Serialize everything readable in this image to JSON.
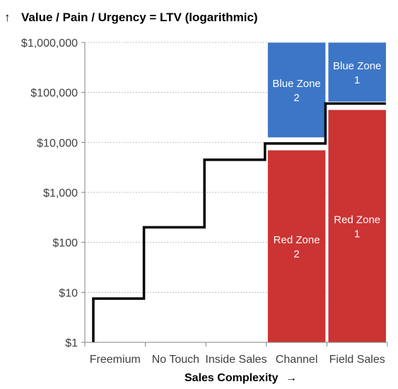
{
  "chart_data": {
    "type": "bar",
    "title": "Value / Pain / Urgency = LTV (logarithmic)",
    "title_arrow": "↑",
    "xlabel": "Sales Complexity",
    "xlabel_arrow": "→",
    "ylabel": "",
    "yscale": "log",
    "ylim": [
      1,
      1000000
    ],
    "grid": true,
    "yticks": [
      {
        "value": 1,
        "label": "$1"
      },
      {
        "value": 10,
        "label": "$10"
      },
      {
        "value": 100,
        "label": "$100"
      },
      {
        "value": 1000,
        "label": "$1,000"
      },
      {
        "value": 10000,
        "label": "$10,000"
      },
      {
        "value": 100000,
        "label": "$100,000"
      },
      {
        "value": 1000000,
        "label": "$1,000,000"
      }
    ],
    "categories": [
      "Freemium",
      "No Touch",
      "Inside Sales",
      "Channel",
      "Field Sales"
    ],
    "zones": [
      {
        "label": "Blue Zone 2",
        "category": "Channel",
        "low": 12500,
        "high": 1000000,
        "color": "#3d76c6"
      },
      {
        "label": "Red Zone 2",
        "category": "Channel",
        "low": 1,
        "high": 7000,
        "color": "#cc3333"
      },
      {
        "label": "Blue Zone 1",
        "category": "Field Sales",
        "low": 65000,
        "high": 1000000,
        "color": "#3d76c6"
      },
      {
        "label": "Red Zone 1",
        "category": "Field Sales",
        "low": 1,
        "high": 45000,
        "color": "#cc3333"
      }
    ],
    "step_line": {
      "name": "",
      "color": "#000000",
      "points": [
        {
          "category": "Freemium",
          "value": 7.5
        },
        {
          "category": "No Touch",
          "value": 200
        },
        {
          "category": "Inside Sales",
          "value": 4500
        },
        {
          "category": "Channel",
          "value": 9500
        },
        {
          "category": "Field Sales",
          "value": 60000
        }
      ]
    }
  }
}
